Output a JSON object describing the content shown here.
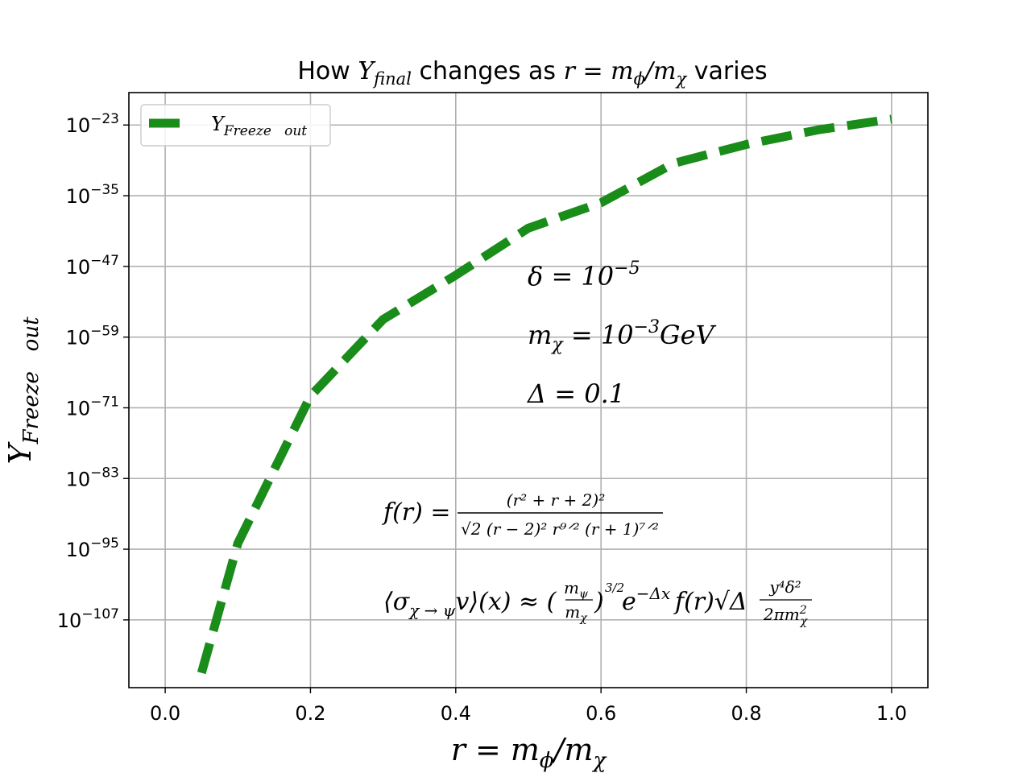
{
  "chart_data": {
    "type": "line",
    "title_parts": {
      "pre": "How ",
      "Y": "Y",
      "Ysub": "final",
      "mid": " changes as ",
      "eq": "r = m",
      "phi": "ϕ",
      "slash": "/m",
      "chi": "χ",
      "post": " varies"
    },
    "xlabel_parts": {
      "eq": "r = m",
      "phi": "ϕ",
      "slash": "/m",
      "chi": "χ"
    },
    "ylabel_parts": {
      "Y": "Y",
      "sub": "Freeze   out"
    },
    "legend": {
      "Y": "Y",
      "sub": "Freeze   out",
      "placement": "top-left"
    },
    "xlim": [
      -0.05,
      1.05
    ],
    "ylim_log10": [
      -118.5,
      -17.5
    ],
    "yscale": "log",
    "grid": true,
    "xticks": [
      {
        "v": 0.0,
        "label": "0.0"
      },
      {
        "v": 0.2,
        "label": "0.2"
      },
      {
        "v": 0.4,
        "label": "0.4"
      },
      {
        "v": 0.6,
        "label": "0.6"
      },
      {
        "v": 0.8,
        "label": "0.8"
      },
      {
        "v": 1.0,
        "label": "1.0"
      }
    ],
    "yticks": [
      {
        "exp": -23,
        "base": "10",
        "sup": "−23"
      },
      {
        "exp": -35,
        "base": "10",
        "sup": "−35"
      },
      {
        "exp": -47,
        "base": "10",
        "sup": "−47"
      },
      {
        "exp": -59,
        "base": "10",
        "sup": "−59"
      },
      {
        "exp": -71,
        "base": "10",
        "sup": "−71"
      },
      {
        "exp": -83,
        "base": "10",
        "sup": "−83"
      },
      {
        "exp": -95,
        "base": "10",
        "sup": "−95"
      },
      {
        "exp": -107,
        "base": "10",
        "sup": "−107"
      }
    ],
    "series": [
      {
        "color": "#1a8c1a",
        "linestyle": "dashed",
        "x": [
          0.05,
          0.1,
          0.2,
          0.3,
          0.4,
          0.5,
          0.6,
          0.7,
          0.8,
          0.9,
          1.0
        ],
        "log10_y": [
          -116,
          -94,
          -69,
          -56,
          -48.5,
          -40.5,
          -36.2,
          -29.5,
          -26.3,
          -23.8,
          -22
        ]
      }
    ],
    "annotations": {
      "delta": "δ = 10",
      "delta_sup": "−5",
      "mchi_m": "m",
      "mchi_chi": "χ",
      "mchi_val": " = 10",
      "mchi_sup": "−3",
      "mchi_unit": "GeV",
      "Delta": "Δ = 0.1",
      "fr_lhs": "f(r) = ",
      "fr_num": "(r² + r + 2)²",
      "fr_den": "√2 (r − 2)² r⁹ᐟ² (r + 1)⁷ᐟ²",
      "sig_lhs": "⟨σ",
      "sig_sub": "χ → ψ",
      "sig_mid": "v⟩(x) ≈ (",
      "sig_frac_num": "m",
      "sig_frac_num_sub": "ψ",
      "sig_frac_den": "m",
      "sig_frac_den_sub": "χ",
      "sig_close": ")",
      "sig_pow": "3/2",
      "sig_exp": "e",
      "sig_exp_sup": "−Δx",
      "sig_f": "f(r)√Δ",
      "sig_num2": "y⁴δ²",
      "sig_den2": "2πm",
      "sig_den2_sub": "χ",
      "sig_den2_sup": "2"
    }
  }
}
